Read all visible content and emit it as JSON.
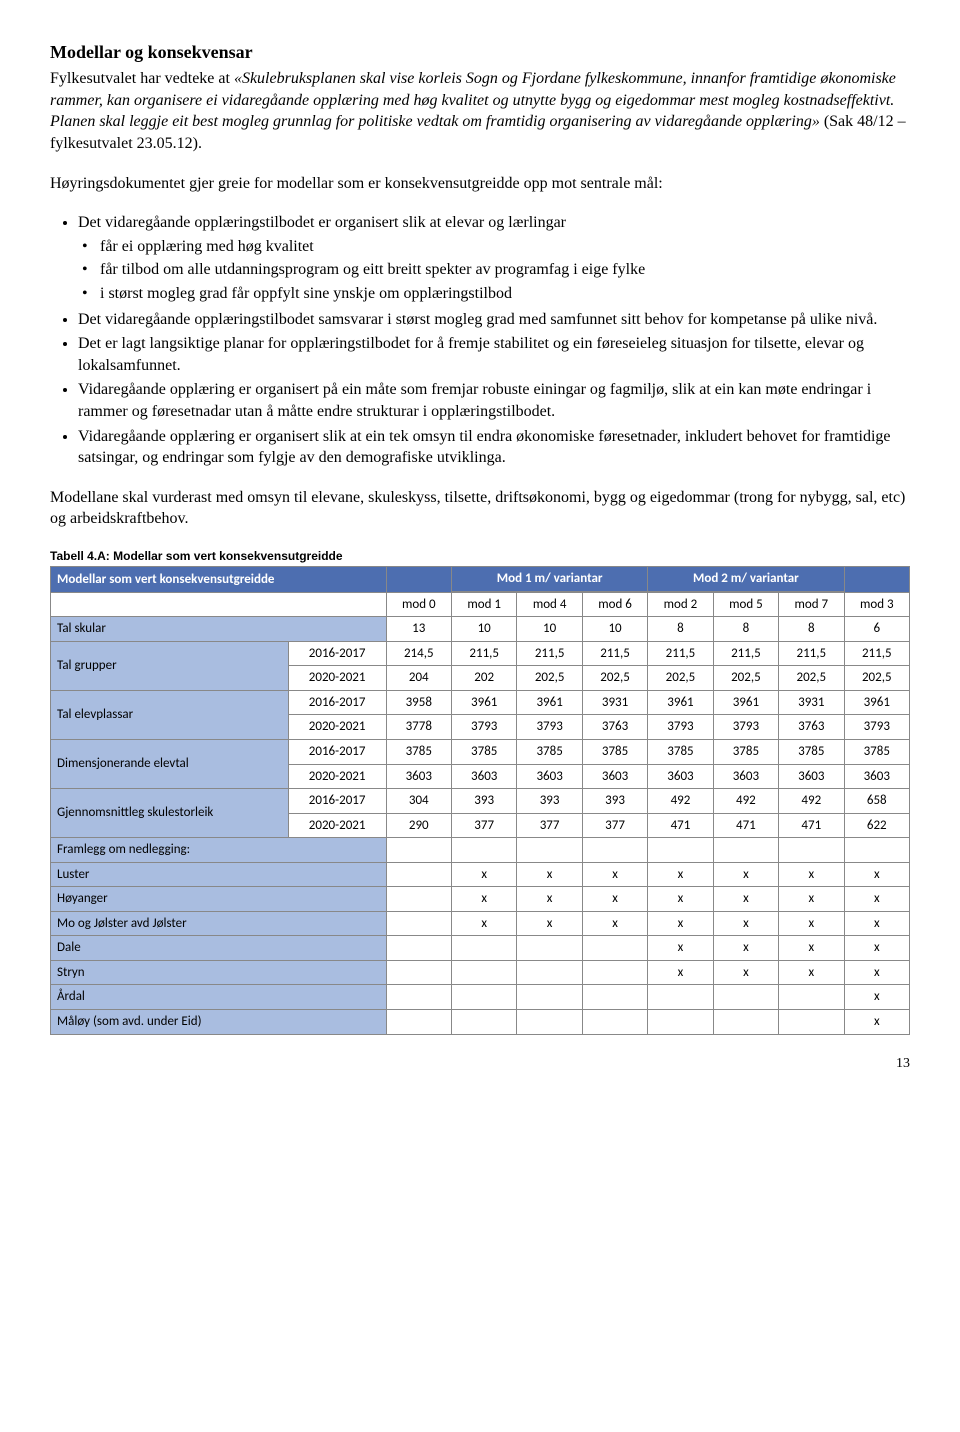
{
  "title": "Modellar og konsekvensar",
  "intro_plain": "Fylkesutvalet har vedteke at ",
  "intro_italic": "«Skulebruksplanen skal vise korleis Sogn og Fjordane fylkeskommune, innanfor framtidige økonomiske rammer, kan organisere ei vidaregåande opplæring med høg kvalitet og utnytte bygg og eigedommar mest mogleg kostnadseffektivt. Planen skal leggje eit best mogleg grunnlag for politiske vedtak om framtidig organisering av vidaregåande opplæring»",
  "intro_tail": " (Sak 48/12 – fylkesutvalet 23.05.12).",
  "lead": "Høyringsdokumentet gjer greie for modellar som er konsekvensutgreidde opp mot sentrale mål:",
  "bullets": {
    "b1": "Det vidaregåande opplæringstilbodet er organisert slik at elevar og lærlingar",
    "b1a": "får ei opplæring med høg kvalitet",
    "b1b": "får tilbod om alle utdanningsprogram og eitt breitt spekter av programfag i eige fylke",
    "b1c": "i størst mogleg grad får oppfylt sine ynskje om opplæringstilbod",
    "b2": "Det vidaregåande opplæringstilbodet samsvarar i størst mogleg grad med samfunnet sitt behov for kompetanse på ulike nivå.",
    "b3": "Det er lagt langsiktige planar for opplæringstilbodet for å fremje stabilitet og ein føreseieleg situasjon for tilsette, elevar og lokalsamfunnet.",
    "b4": "Vidaregåande opplæring er organisert på ein måte som fremjar robuste einingar og fagmiljø, slik at ein kan møte endringar i rammer og føresetnadar utan å måtte endre strukturar i opplæringstilbodet.",
    "b5": "Vidaregåande opplæring er organisert slik at ein tek omsyn til endra økonomiske føresetnader, inkludert behovet for framtidige satsingar, og endringar som fylgje av den demografiske utviklinga."
  },
  "closing": "Modellane skal vurderast med omsyn til elevane, skuleskyss, tilsette, driftsøkonomi, bygg og eigedommar (trong for nybygg, sal, etc) og arbeidskraftbehov.",
  "table": {
    "caption": "Tabell 4.A: Modellar som vert konsekvensutgreidde",
    "header_main": "Modellar som vert konsekvensutgreidde",
    "header_group1": "Mod 1 m/ variantar",
    "header_group2": "Mod 2 m/ variantar",
    "mods": [
      "mod 0",
      "mod 1",
      "mod 4",
      "mod 6",
      "mod 2",
      "mod 5",
      "mod 7",
      "mod 3"
    ],
    "row_labels": {
      "skular": "Tal skular",
      "grupper": "Tal grupper",
      "elevplassar": "Tal elevplassar",
      "dimelevtal": "Dimensjonerande elevtal",
      "gjsnitt": "Gjennomsnittleg skulestorleik",
      "nedlegging": "Framlegg om nedlegging:",
      "luster": "Luster",
      "hoyanger": "Høyanger",
      "mojolster": "Mo og Jølster avd Jølster",
      "dale": "Dale",
      "stryn": "Stryn",
      "ardal": "Årdal",
      "maloy": "Måløy (som avd. under Eid)"
    },
    "years": {
      "y1": "2016-2017",
      "y2": "2020-2021"
    },
    "skular": [
      "13",
      "10",
      "10",
      "10",
      "8",
      "8",
      "8",
      "6"
    ],
    "grupper_y1": [
      "214,5",
      "211,5",
      "211,5",
      "211,5",
      "211,5",
      "211,5",
      "211,5",
      "211,5"
    ],
    "grupper_y2": [
      "204",
      "202",
      "202,5",
      "202,5",
      "202,5",
      "202,5",
      "202,5",
      "202,5"
    ],
    "elevplassar_y1": [
      "3958",
      "3961",
      "3961",
      "3931",
      "3961",
      "3961",
      "3931",
      "3961"
    ],
    "elevplassar_y2": [
      "3778",
      "3793",
      "3793",
      "3763",
      "3793",
      "3793",
      "3763",
      "3793"
    ],
    "dimelevtal_y1": [
      "3785",
      "3785",
      "3785",
      "3785",
      "3785",
      "3785",
      "3785",
      "3785"
    ],
    "dimelevtal_y2": [
      "3603",
      "3603",
      "3603",
      "3603",
      "3603",
      "3603",
      "3603",
      "3603"
    ],
    "gjsnitt_y1": [
      "304",
      "393",
      "393",
      "393",
      "492",
      "492",
      "492",
      "658"
    ],
    "gjsnitt_y2": [
      "290",
      "377",
      "377",
      "377",
      "471",
      "471",
      "471",
      "622"
    ],
    "luster": [
      "",
      "x",
      "x",
      "x",
      "x",
      "x",
      "x",
      "x"
    ],
    "hoyanger": [
      "",
      "x",
      "x",
      "x",
      "x",
      "x",
      "x",
      "x"
    ],
    "mojolster": [
      "",
      "x",
      "x",
      "x",
      "x",
      "x",
      "x",
      "x"
    ],
    "dale": [
      "",
      "",
      "",
      "",
      "x",
      "x",
      "x",
      "x"
    ],
    "stryn": [
      "",
      "",
      "",
      "",
      "x",
      "x",
      "x",
      "x"
    ],
    "ardal": [
      "",
      "",
      "",
      "",
      "",
      "",
      "",
      "x"
    ],
    "maloy": [
      "",
      "",
      "",
      "",
      "",
      "",
      "",
      "x"
    ]
  },
  "page_number": "13"
}
